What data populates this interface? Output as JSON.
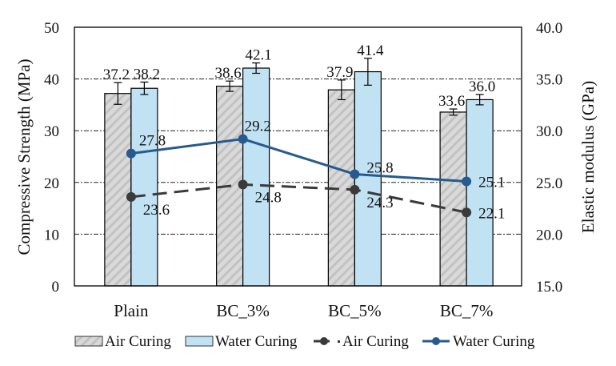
{
  "chart_data": {
    "type": "bar",
    "title": "",
    "categories": [
      "Plain",
      "BC_3%",
      "BC_5%",
      "BC_7%"
    ],
    "xlabel": "",
    "ylabel": "Compressive Strength (MPa)",
    "ylabel_right": "Elastic modulus (GPa)",
    "ylim": [
      0,
      50
    ],
    "ylim_right": [
      15.0,
      40.0
    ],
    "yticks": [
      "0",
      "10",
      "20",
      "30",
      "40",
      "50"
    ],
    "yticks_right": [
      "15.0",
      "20.0",
      "25.0",
      "30.0",
      "35.0",
      "40.0"
    ],
    "grid": true,
    "legend_position": "bottom",
    "bar_series": [
      {
        "name": "Air Curing",
        "axis": "left",
        "values": [
          37.2,
          38.6,
          37.9,
          33.6
        ],
        "labels": [
          "37.2",
          "38.6",
          "37.9",
          "33.6"
        ],
        "error": [
          2.1,
          1.0,
          1.9,
          0.6
        ],
        "color": "#d9d9d9",
        "pattern": "diagonal-hatch"
      },
      {
        "name": "Water Curing",
        "axis": "left",
        "values": [
          38.2,
          42.1,
          41.4,
          36.0
        ],
        "labels": [
          "38.2",
          "42.1",
          "41.4",
          "36.0"
        ],
        "error": [
          1.2,
          1.0,
          2.6,
          1.0
        ],
        "color": "#c0e2f3"
      }
    ],
    "line_series": [
      {
        "name": "Air Curing",
        "axis": "right",
        "values": [
          23.6,
          24.8,
          24.3,
          22.1
        ],
        "labels": [
          "23.6",
          "24.8",
          "24.3",
          "22.1"
        ],
        "color": "#3a3a3a",
        "style": "dashed"
      },
      {
        "name": "Water Curing",
        "axis": "right",
        "values": [
          27.8,
          29.2,
          25.8,
          25.1
        ],
        "labels": [
          "27.8",
          "29.2",
          "25.8",
          "25.1"
        ],
        "color": "#275a8e",
        "style": "solid"
      }
    ]
  },
  "legend": {
    "items": [
      {
        "label": "Air Curing",
        "kind": "bar-hatch"
      },
      {
        "label": "Water Curing",
        "kind": "bar-blue"
      },
      {
        "label": "Air Curing",
        "kind": "line-dashed"
      },
      {
        "label": "Water Curing",
        "kind": "line-solid"
      }
    ]
  }
}
